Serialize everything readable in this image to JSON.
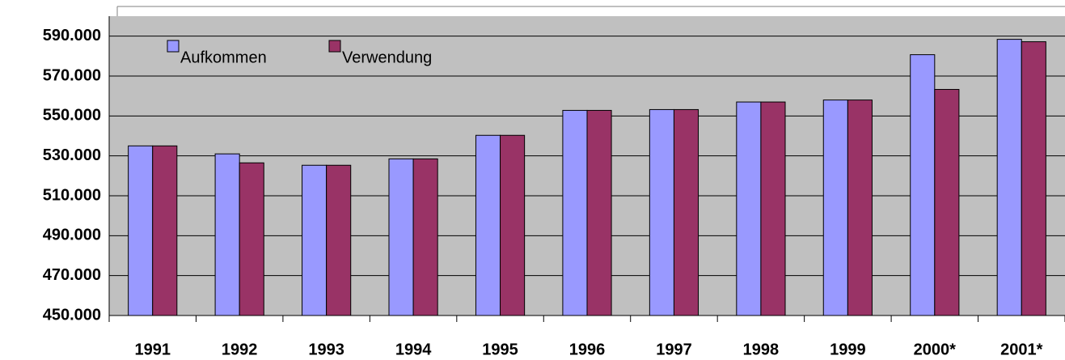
{
  "chart_data": {
    "type": "bar",
    "categories": [
      "1991",
      "1992",
      "1993",
      "1994",
      "1995",
      "1996",
      "1997",
      "1998",
      "1999",
      "2000*",
      "2001*"
    ],
    "series": [
      {
        "name": "Aufkommen",
        "color": "#9999ff",
        "values": [
          535000,
          531000,
          525300,
          528500,
          540300,
          552800,
          553200,
          557000,
          558000,
          580700,
          588400
        ]
      },
      {
        "name": "Verwendung",
        "color": "#993366",
        "values": [
          535000,
          526500,
          525300,
          528500,
          540300,
          552800,
          553200,
          557000,
          558000,
          563300,
          587200
        ]
      }
    ],
    "ylim": [
      450000,
      600000
    ],
    "yticks": [
      {
        "value": 450000,
        "label": "450.000"
      },
      {
        "value": 470000,
        "label": "470.000"
      },
      {
        "value": 490000,
        "label": "490.000"
      },
      {
        "value": 510000,
        "label": "510.000"
      },
      {
        "value": 530000,
        "label": "530.000"
      },
      {
        "value": 550000,
        "label": "550.000"
      },
      {
        "value": 570000,
        "label": "570.000"
      },
      {
        "value": 590000,
        "label": "590.000"
      }
    ],
    "grid": true,
    "legend": "top-left"
  }
}
